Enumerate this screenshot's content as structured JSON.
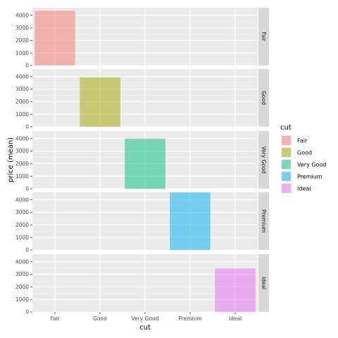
{
  "chart_data": {
    "type": "bar",
    "categories": [
      "Fair",
      "Good",
      "Very Good",
      "Premium",
      "Ideal"
    ],
    "facets": [
      "Fair",
      "Good",
      "Very Good",
      "Premium",
      "Ideal"
    ],
    "values": [
      4359,
      3929,
      3982,
      4584,
      3458
    ],
    "colors": [
      "#F8766D",
      "#A3A500",
      "#00BF7D",
      "#00B0F6",
      "#E76BF3"
    ],
    "xlabel": "cut",
    "ylabel": "price (mean)",
    "yticks": [
      0,
      1000,
      2000,
      3000,
      4000
    ],
    "ylim": [
      0,
      4600
    ],
    "legend": {
      "title": "cut",
      "items": [
        "Fair",
        "Good",
        "Very Good",
        "Premium",
        "Ideal"
      ],
      "position": "right"
    },
    "grid": true,
    "facet_strip_position": "right"
  }
}
